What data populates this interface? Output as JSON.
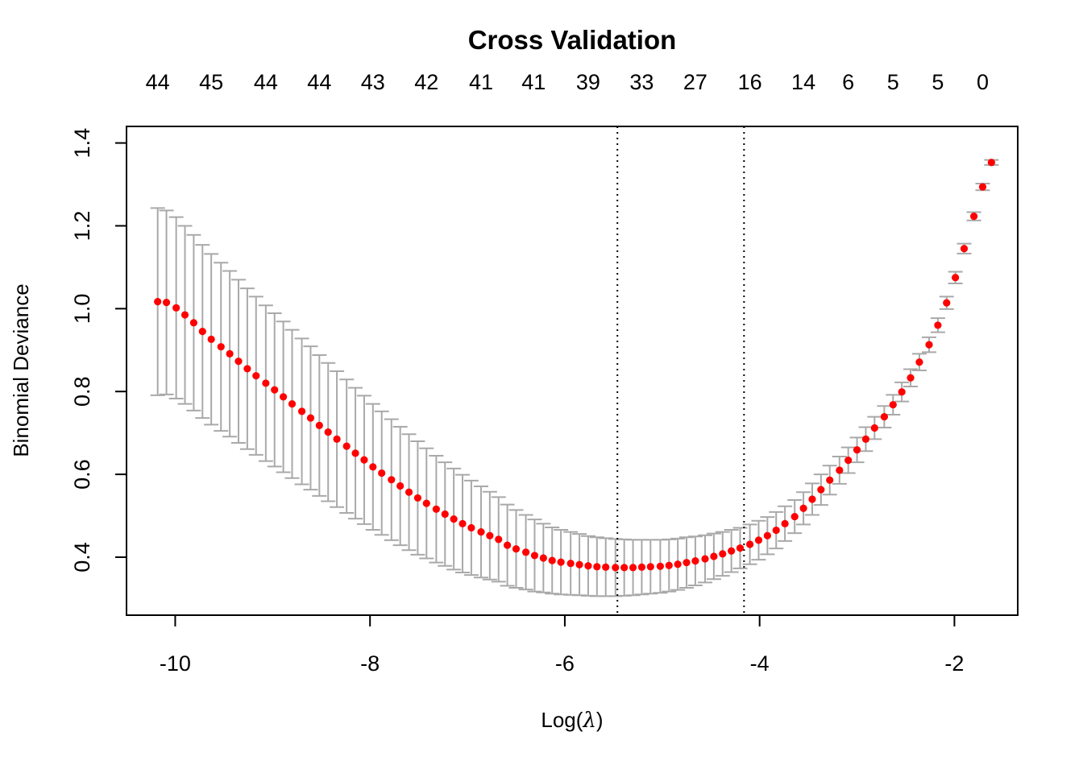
{
  "chart_data": {
    "type": "scatter",
    "title": "Cross Validation",
    "xlabel": "Log(λ)",
    "xlabel_prefix": "Log(",
    "xlabel_symbol": "λ",
    "xlabel_suffix": ")",
    "ylabel": "Binomial Deviance",
    "xlim": [
      -10.5,
      -1.35
    ],
    "ylim": [
      0.26,
      1.44
    ],
    "x_ticks": [
      -10,
      -8,
      -6,
      -4,
      -2
    ],
    "x_tick_labels": [
      "-10",
      "-8",
      "-6",
      "-4",
      "-2"
    ],
    "y_ticks": [
      0.4,
      0.6,
      0.8,
      1.0,
      1.2,
      1.4
    ],
    "y_tick_labels": [
      "0.4",
      "0.6",
      "0.8",
      "1.0",
      "1.2",
      "1.4"
    ],
    "top_axis": {
      "x": [
        -10.18,
        -9.63,
        -9.07,
        -8.52,
        -7.97,
        -7.42,
        -6.86,
        -6.32,
        -5.76,
        -5.21,
        -4.66,
        -4.1,
        -3.55,
        -3.09,
        -2.63,
        -2.17,
        -1.71
      ],
      "labels": [
        "44",
        "45",
        "44",
        "44",
        "43",
        "42",
        "41",
        "41",
        "39",
        "33",
        "27",
        "16",
        "14",
        "6",
        "5",
        "5",
        "0"
      ]
    },
    "vlines": [
      {
        "x": -5.46,
        "style": "dotted"
      },
      {
        "x": -4.16,
        "style": "dotted"
      }
    ],
    "colors": {
      "points": "#ff0000",
      "error_bars": "#a9a9a9",
      "vlines": "#000000"
    },
    "series": [
      {
        "x": [
          -10.18,
          -10.09,
          -9.99,
          -9.9,
          -9.81,
          -9.72,
          -9.63,
          -9.53,
          -9.44,
          -9.35,
          -9.26,
          -9.17,
          -9.07,
          -8.98,
          -8.89,
          -8.8,
          -8.7,
          -8.61,
          -8.52,
          -8.43,
          -8.34,
          -8.24,
          -8.15,
          -8.06,
          -7.97,
          -7.88,
          -7.78,
          -7.69,
          -7.6,
          -7.51,
          -7.42,
          -7.32,
          -7.23,
          -7.14,
          -7.05,
          -6.96,
          -6.86,
          -6.77,
          -6.68,
          -6.59,
          -6.5,
          -6.4,
          -6.31,
          -6.22,
          -6.13,
          -6.04,
          -5.94,
          -5.85,
          -5.76,
          -5.67,
          -5.58,
          -5.48,
          -5.39,
          -5.3,
          -5.21,
          -5.12,
          -5.02,
          -4.93,
          -4.84,
          -4.75,
          -4.66,
          -4.56,
          -4.47,
          -4.38,
          -4.29,
          -4.2,
          -4.1,
          -4.01,
          -3.92,
          -3.83,
          -3.74,
          -3.64,
          -3.55,
          -3.46,
          -3.37,
          -3.28,
          -3.18,
          -3.09,
          -3.0,
          -2.91,
          -2.82,
          -2.72,
          -2.63,
          -2.54,
          -2.45,
          -2.36,
          -2.26,
          -2.17,
          -2.08,
          -1.99,
          -1.9,
          -1.8,
          -1.71,
          -1.62
        ],
        "y": [
          1.017,
          1.015,
          1.002,
          0.985,
          0.966,
          0.945,
          0.926,
          0.908,
          0.891,
          0.873,
          0.855,
          0.838,
          0.82,
          0.804,
          0.787,
          0.77,
          0.752,
          0.736,
          0.718,
          0.702,
          0.685,
          0.668,
          0.651,
          0.635,
          0.618,
          0.603,
          0.587,
          0.572,
          0.557,
          0.543,
          0.53,
          0.516,
          0.504,
          0.492,
          0.481,
          0.471,
          0.461,
          0.452,
          0.443,
          0.429,
          0.42,
          0.412,
          0.404,
          0.398,
          0.392,
          0.388,
          0.385,
          0.382,
          0.379,
          0.377,
          0.376,
          0.375,
          0.375,
          0.375,
          0.376,
          0.377,
          0.378,
          0.38,
          0.383,
          0.387,
          0.391,
          0.396,
          0.402,
          0.408,
          0.415,
          0.422,
          0.431,
          0.441,
          0.452,
          0.465,
          0.481,
          0.498,
          0.518,
          0.54,
          0.563,
          0.586,
          0.61,
          0.634,
          0.659,
          0.685,
          0.712,
          0.739,
          0.768,
          0.799,
          0.833,
          0.871,
          0.913,
          0.96,
          1.014,
          1.075,
          1.145,
          1.223,
          1.294,
          1.353
        ],
        "err": [
          0.226,
          0.222,
          0.219,
          0.215,
          0.212,
          0.209,
          0.206,
          0.203,
          0.2,
          0.197,
          0.194,
          0.191,
          0.188,
          0.185,
          0.182,
          0.179,
          0.176,
          0.173,
          0.17,
          0.167,
          0.164,
          0.161,
          0.158,
          0.155,
          0.152,
          0.149,
          0.146,
          0.143,
          0.14,
          0.137,
          0.133,
          0.129,
          0.125,
          0.122,
          0.118,
          0.114,
          0.11,
          0.106,
          0.102,
          0.098,
          0.094,
          0.09,
          0.087,
          0.083,
          0.08,
          0.078,
          0.076,
          0.074,
          0.072,
          0.071,
          0.07,
          0.069,
          0.068,
          0.067,
          0.066,
          0.065,
          0.064,
          0.063,
          0.062,
          0.061,
          0.059,
          0.057,
          0.055,
          0.053,
          0.051,
          0.049,
          0.048,
          0.047,
          0.045,
          0.044,
          0.042,
          0.04,
          0.039,
          0.038,
          0.037,
          0.035,
          0.033,
          0.031,
          0.03,
          0.029,
          0.027,
          0.026,
          0.024,
          0.023,
          0.021,
          0.02,
          0.018,
          0.017,
          0.015,
          0.014,
          0.012,
          0.01,
          0.008,
          0.006
        ]
      }
    ]
  }
}
